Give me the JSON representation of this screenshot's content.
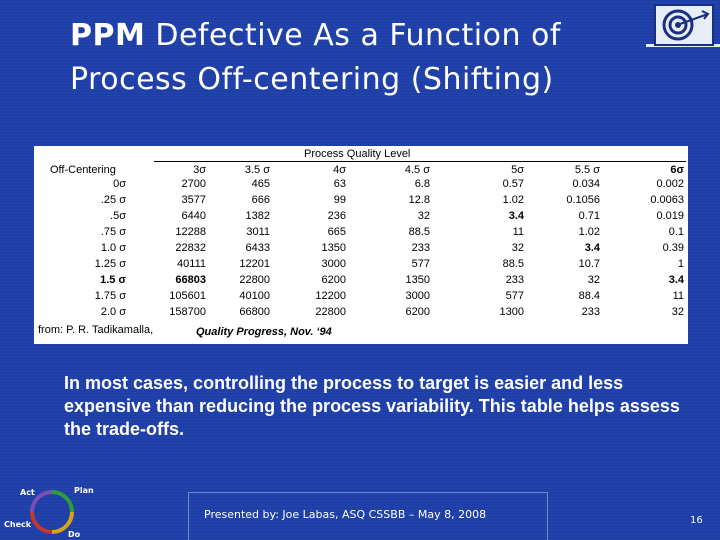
{
  "title": {
    "line1_bold": "PPM",
    "line1_rest": " Defective As a Function of",
    "line2": "Process Off-centering (Shifting)"
  },
  "table": {
    "header": "Process Quality Level",
    "row_header_label": "Off-Centering",
    "columns": [
      "3σ",
      "3.5 σ",
      "4σ",
      "4.5 σ",
      "5σ",
      "5.5 σ",
      "6σ"
    ],
    "rows": [
      {
        "label": "0σ",
        "values": [
          "2700",
          "465",
          "63",
          "6.8",
          "0.57",
          "0.034",
          "0.002"
        ]
      },
      {
        "label": ".25 σ",
        "values": [
          "3577",
          "666",
          "99",
          "12.8",
          "1.02",
          "0.1056",
          "0.0063"
        ]
      },
      {
        "label": ".5σ",
        "values": [
          "6440",
          "1382",
          "236",
          "32",
          "3.4",
          "0.71",
          "0.019"
        ]
      },
      {
        "label": ".75 σ",
        "values": [
          "12288",
          "3011",
          "665",
          "88.5",
          "11",
          "1.02",
          "0.1"
        ]
      },
      {
        "label": "1.0 σ",
        "values": [
          "22832",
          "6433",
          "1350",
          "233",
          "32",
          "3.4",
          "0.39"
        ]
      },
      {
        "label": "1.25 σ",
        "values": [
          "40111",
          "12201",
          "3000",
          "577",
          "88.5",
          "10.7",
          "1"
        ]
      },
      {
        "label": "1.5 σ",
        "values": [
          "66803",
          "22800",
          "6200",
          "1350",
          "233",
          "32",
          "3.4"
        ]
      },
      {
        "label": "1.75 σ",
        "values": [
          "105601",
          "40100",
          "12200",
          "3000",
          "577",
          "88.4",
          "11"
        ]
      },
      {
        "label": "2.0 σ",
        "values": [
          "158700",
          "66800",
          "22800",
          "6200",
          "1300",
          "233",
          "32"
        ]
      }
    ],
    "source": "from:  P. R. Tadikamalla,",
    "citation": "Quality Progress, Nov. ‘94"
  },
  "body_text": "In most cases, controlling the process to target is easier and less expensive than reducing the process variability.  This table helps assess the trade-offs.",
  "footer": "Presented by: Joe Labas, ASQ  CSSBB – May 8, 2008",
  "page_number": "16",
  "pdca": {
    "act": "Act",
    "plan": "Plan",
    "check": "Check",
    "do": "Do"
  }
}
